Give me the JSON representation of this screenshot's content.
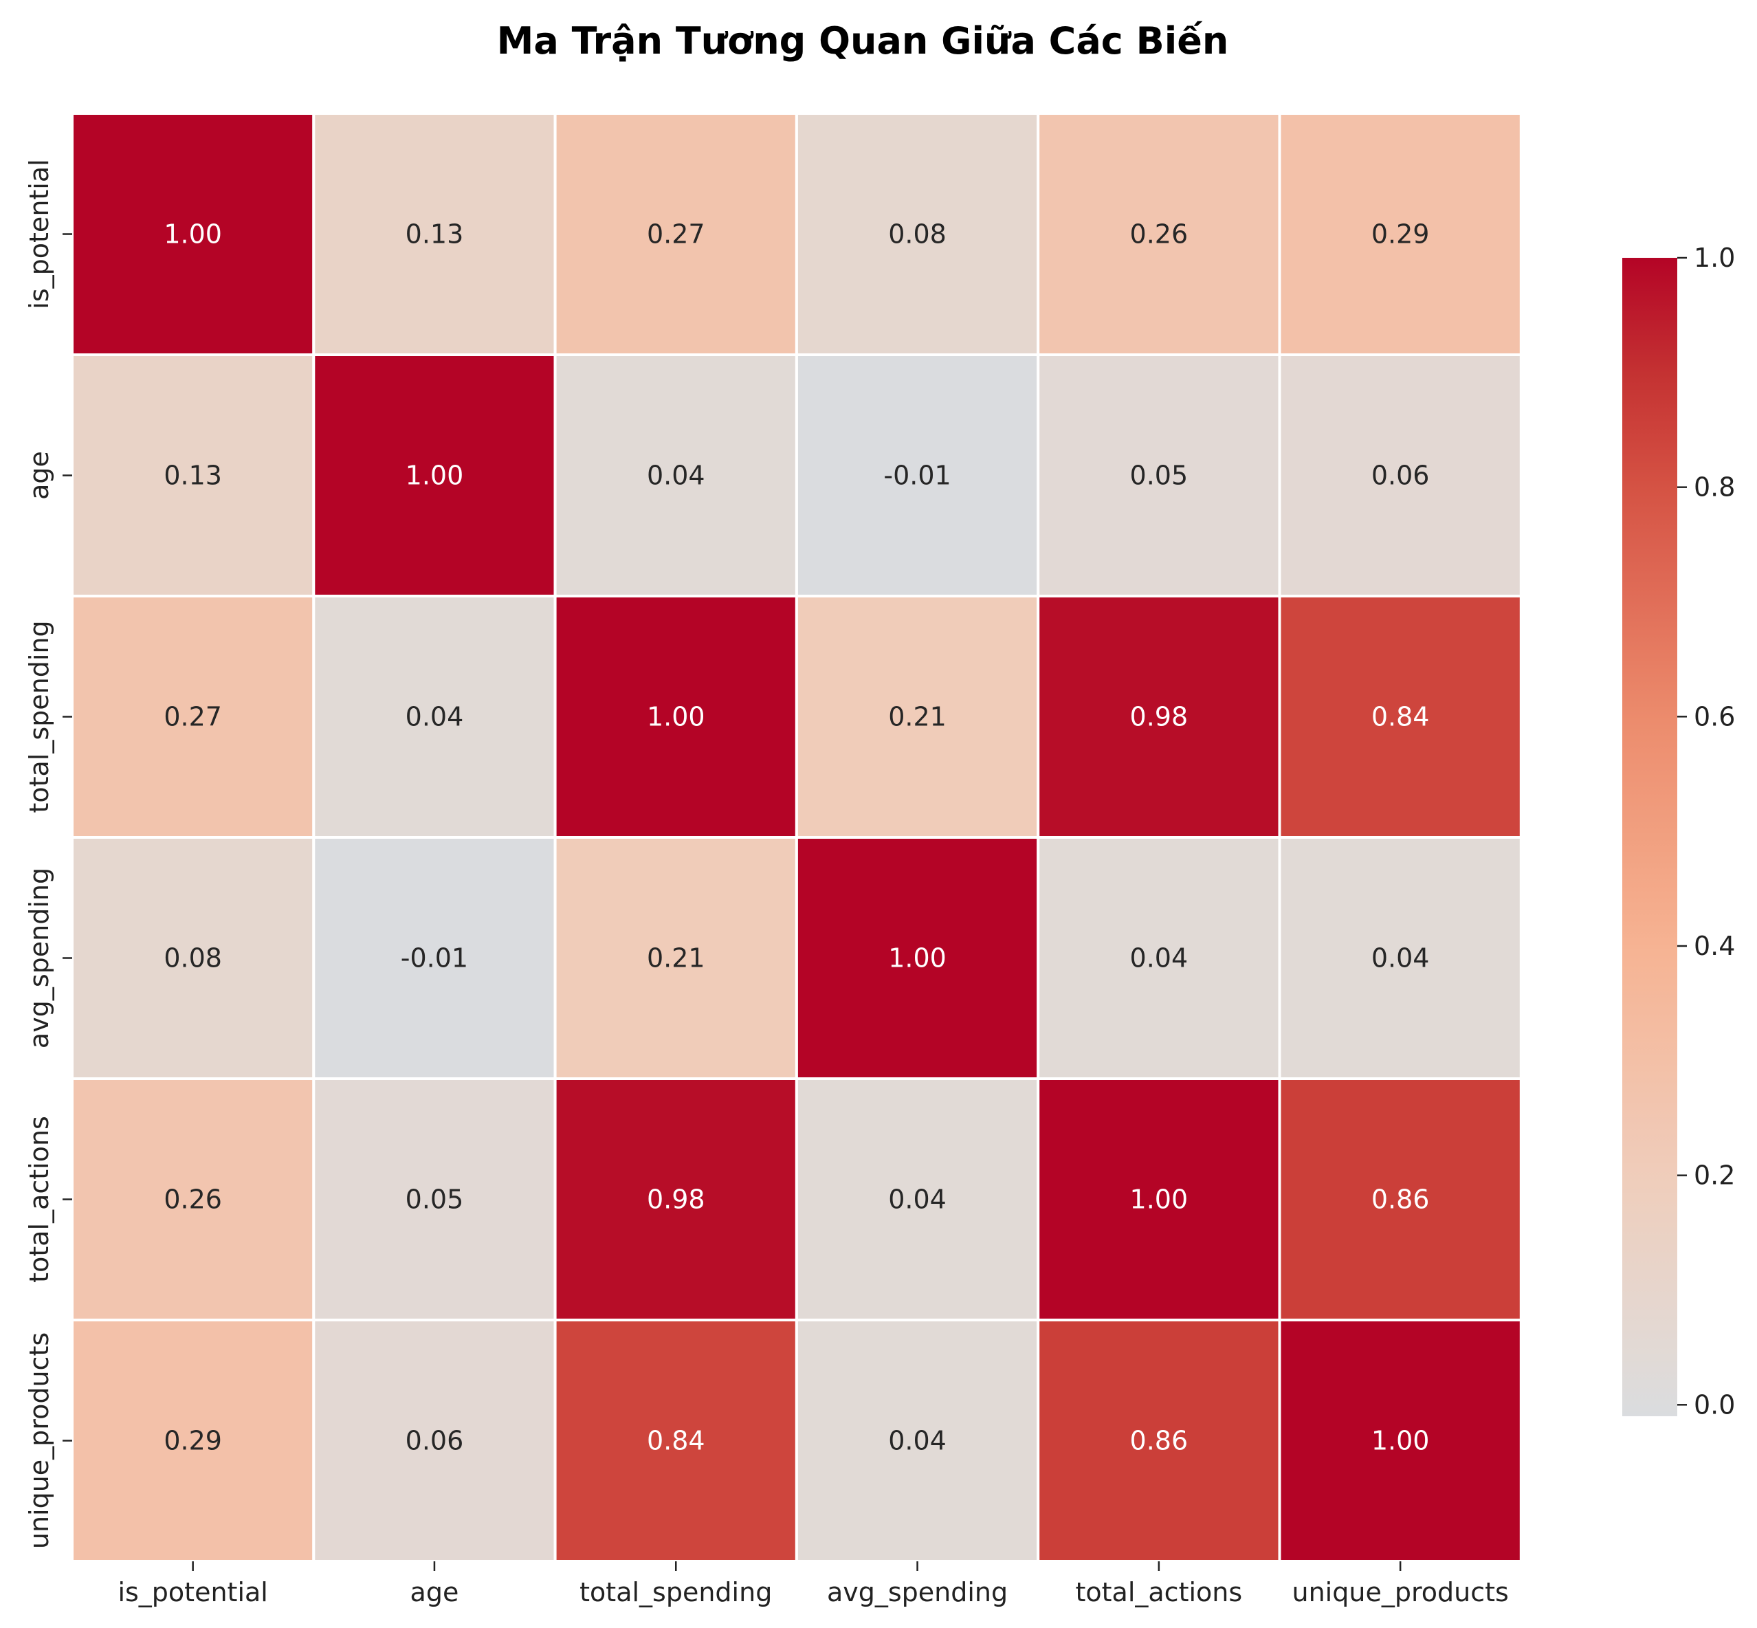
{
  "chart_data": {
    "type": "heatmap",
    "title": "Ma Trận Tương Quan Giữa Các Biến",
    "variables": [
      "is_potential",
      "age",
      "total_spending",
      "avg_spending",
      "total_actions",
      "unique_products"
    ],
    "matrix": [
      [
        1.0,
        0.13,
        0.27,
        0.08,
        0.26,
        0.29
      ],
      [
        0.13,
        1.0,
        0.04,
        -0.01,
        0.05,
        0.06
      ],
      [
        0.27,
        0.04,
        1.0,
        0.21,
        0.98,
        0.84
      ],
      [
        0.08,
        -0.01,
        0.21,
        1.0,
        0.04,
        0.04
      ],
      [
        0.26,
        0.05,
        0.98,
        0.04,
        1.0,
        0.86
      ],
      [
        0.29,
        0.06,
        0.84,
        0.04,
        0.86,
        1.0
      ]
    ],
    "value_format": "2 decimals",
    "colormap": "coolwarm",
    "color_range": [
      -1,
      1
    ],
    "colorbar": {
      "range": [
        -0.01,
        1.0
      ],
      "ticks": [
        "0.0",
        "0.2",
        "0.4",
        "0.6",
        "0.8",
        "1.0"
      ],
      "tick_values": [
        0.0,
        0.2,
        0.4,
        0.6,
        0.8,
        1.0
      ]
    },
    "grid_line_color": "#ffffff"
  }
}
